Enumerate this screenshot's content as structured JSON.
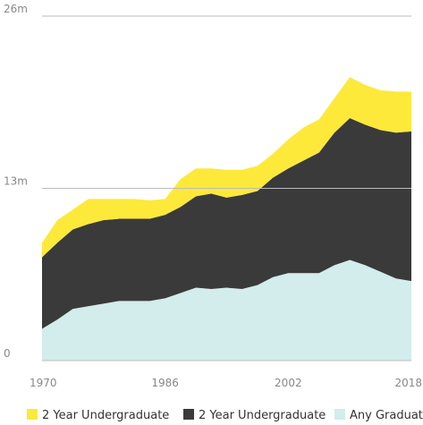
{
  "chart_data": {
    "type": "area",
    "x": [
      1970,
      1972,
      1974,
      1976,
      1978,
      1980,
      1982,
      1984,
      1986,
      1988,
      1990,
      1992,
      1994,
      1996,
      1998,
      2000,
      2002,
      2004,
      2006,
      2008,
      2010,
      2012,
      2014,
      2016,
      2018
    ],
    "series": [
      {
        "name": "2 Year Undergraduate",
        "color": "#fde93a",
        "values": [
          1.1,
          1.7,
          1.5,
          1.9,
          1.6,
          1.5,
          1.5,
          1.4,
          1.2,
          2.1,
          2.1,
          1.9,
          2.1,
          1.9,
          1.9,
          1.8,
          2.2,
          2.5,
          2.5,
          2.6,
          3.1,
          3.0,
          3.0,
          3.1,
          3.0
        ]
      },
      {
        "name": "2 Year Undergraduate",
        "color": "#3a3a3a",
        "values": [
          5.4,
          5.8,
          6.0,
          6.2,
          6.3,
          6.2,
          6.2,
          6.2,
          6.3,
          6.5,
          6.9,
          7.2,
          6.8,
          7.1,
          7.1,
          7.5,
          7.9,
          8.5,
          9.1,
          10.0,
          10.7,
          10.6,
          10.7,
          11.0,
          11.3
        ]
      },
      {
        "name": "Any Graduate",
        "color": "#d3ecec",
        "values": [
          2.4,
          3.1,
          3.9,
          4.1,
          4.3,
          4.5,
          4.5,
          4.5,
          4.7,
          5.1,
          5.5,
          5.4,
          5.5,
          5.4,
          5.7,
          6.3,
          6.6,
          6.6,
          6.6,
          7.2,
          7.6,
          7.2,
          6.7,
          6.2,
          6.0
        ]
      }
    ],
    "stacked": true,
    "xlim": [
      1970,
      2018
    ],
    "xticks": [
      1970,
      1986,
      2002,
      2018
    ],
    "ylim": [
      0,
      26
    ],
    "yticks": [
      0,
      {
        "value": 13,
        "label": "13m"
      },
      {
        "value": 26,
        "label": "26m"
      }
    ],
    "grid": true,
    "legend": "bottom"
  }
}
